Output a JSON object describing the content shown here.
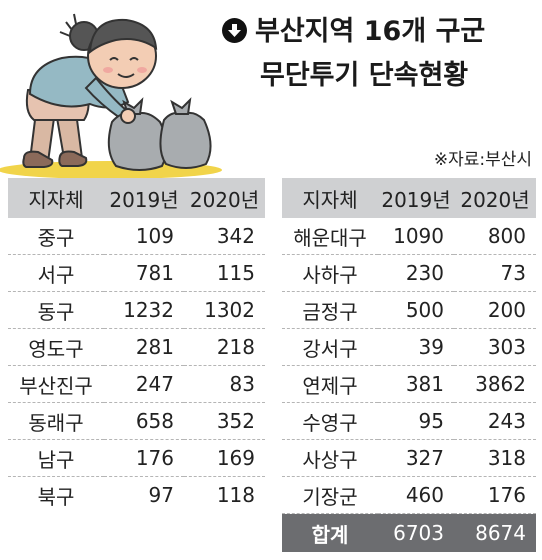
{
  "title": {
    "line1": "부산지역 16개 구군",
    "line2": "무단투기 단속현황"
  },
  "source": "※자료:부산시",
  "headers": {
    "district": "지자체",
    "y2019": "2019년",
    "y2020": "2020년"
  },
  "left_rows": [
    {
      "name": "중구",
      "y2019": "109",
      "y2020": "342"
    },
    {
      "name": "서구",
      "y2019": "781",
      "y2020": "115"
    },
    {
      "name": "동구",
      "y2019": "1232",
      "y2020": "1302"
    },
    {
      "name": "영도구",
      "y2019": "281",
      "y2020": "218"
    },
    {
      "name": "부산진구",
      "y2019": "247",
      "y2020": "83"
    },
    {
      "name": "동래구",
      "y2019": "658",
      "y2020": "352"
    },
    {
      "name": "남구",
      "y2019": "176",
      "y2020": "169"
    },
    {
      "name": "북구",
      "y2019": "97",
      "y2020": "118"
    }
  ],
  "right_rows": [
    {
      "name": "해운대구",
      "y2019": "1090",
      "y2020": "800"
    },
    {
      "name": "사하구",
      "y2019": "230",
      "y2020": "73"
    },
    {
      "name": "금정구",
      "y2019": "500",
      "y2020": "200"
    },
    {
      "name": "강서구",
      "y2019": "39",
      "y2020": "303"
    },
    {
      "name": "연제구",
      "y2019": "381",
      "y2020": "3862"
    },
    {
      "name": "수영구",
      "y2019": "95",
      "y2020": "243"
    },
    {
      "name": "사상구",
      "y2019": "327",
      "y2020": "318"
    },
    {
      "name": "기장군",
      "y2019": "460",
      "y2020": "176"
    }
  ],
  "total": {
    "name": "합계",
    "y2019": "6703",
    "y2020": "8674"
  },
  "colors": {
    "header_bg": "#cfd0d2",
    "total_bg": "#6c6d70",
    "ground": "#f1d44a",
    "shirt": "#95b9c4",
    "trash_bag": "#a8acaf"
  },
  "icons": {
    "title_marker": "down-arrow-circle-icon",
    "illustration": "person-carrying-trash-bags"
  }
}
